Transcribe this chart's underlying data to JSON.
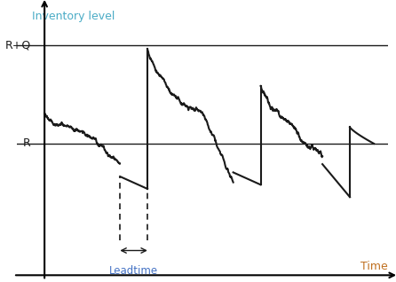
{
  "ylabel": "Inventory level",
  "xlabel": "Time",
  "ylabel_color": "#4BACC6",
  "xlabel_color": "#C07020",
  "R_label": "R",
  "RQ_label": "R+Q",
  "leadtime_label": "Leadtime",
  "line_color": "#1a1a1a",
  "background_color": "#ffffff",
  "figsize": [
    4.46,
    3.18
  ],
  "dpi": 100,
  "R": 0.42,
  "RQ": 0.9
}
